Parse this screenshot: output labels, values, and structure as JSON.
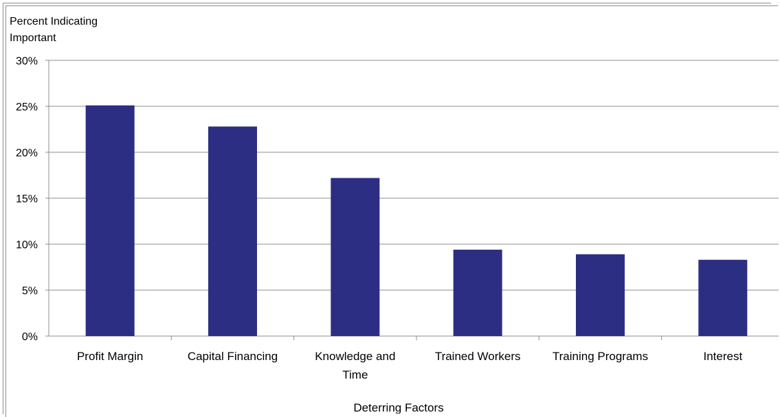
{
  "chart_data": {
    "type": "bar",
    "ylabel_lines": [
      "Percent Indicating",
      "Important"
    ],
    "xlabel": "Deterring Factors",
    "categories": [
      [
        "Profit Margin"
      ],
      [
        "Capital Financing"
      ],
      [
        "Knowledge and",
        "Time"
      ],
      [
        "Trained Workers"
      ],
      [
        "Training Programs"
      ],
      [
        "Interest"
      ]
    ],
    "values": [
      25.1,
      22.8,
      17.2,
      9.4,
      8.9,
      8.3
    ],
    "ylim": [
      0,
      30
    ],
    "yticks": [
      0,
      5,
      10,
      15,
      20,
      25,
      30
    ],
    "ytick_labels": [
      "0%",
      "5%",
      "10%",
      "15%",
      "20%",
      "25%",
      "30%"
    ],
    "grid": true,
    "bar_color": "#2b2e83",
    "grid_color": "#8c8c8c"
  }
}
